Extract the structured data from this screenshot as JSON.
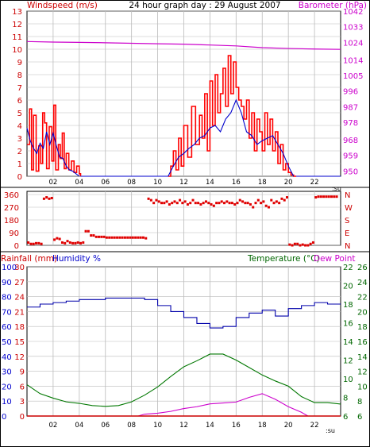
{
  "title": "24 hour graph day : 29 August 2007",
  "x_end_label": ":su",
  "colors": {
    "wind": "#e00000",
    "gust": "#ff0000",
    "avgwind": "#0000cc",
    "baro": "#cc00cc",
    "dir": "#e00000",
    "humidity": "#0000aa",
    "temperature": "#007700",
    "rain": "#cc00cc",
    "dewpoint": "#007700",
    "left_axis": "#cc0000",
    "right_axis": "#cc00cc",
    "blue_axis": "#0000cc",
    "green_axis": "#006600",
    "grid": "#bbbbbb"
  },
  "chart_data": [
    {
      "type": "line",
      "title": "24 hour graph day : 29 August 2007",
      "ylabel": "Windspeed (m/s)",
      "y2label": "Barometer (hPa)",
      "xlim": [
        0,
        24
      ],
      "ylim": [
        0,
        13
      ],
      "y2lim": [
        947,
        1042
      ],
      "x_ticks": [
        2,
        4,
        6,
        8,
        10,
        12,
        14,
        16,
        18,
        20,
        22
      ],
      "x_tick_labels": [
        "02",
        "04",
        "06",
        "08",
        "10",
        "12",
        "14",
        "16",
        "18",
        "20",
        "22"
      ],
      "y_ticks": [
        0,
        1,
        2,
        3,
        4,
        5,
        6,
        7,
        8,
        9,
        10,
        11,
        12,
        13
      ],
      "y2_ticks": [
        950,
        959,
        968,
        978,
        987,
        996,
        1005,
        1014,
        1024,
        1033,
        1042
      ],
      "grid": true,
      "series": [
        {
          "name": "gust",
          "axis": "left",
          "x": [
            0.0,
            0.2,
            0.35,
            0.5,
            0.7,
            0.9,
            1.05,
            1.2,
            1.35,
            1.5,
            1.7,
            1.9,
            2.05,
            2.2,
            2.4,
            2.55,
            2.7,
            2.85,
            3.0,
            3.2,
            3.4,
            3.6,
            3.8,
            4.0,
            4.1,
            10.8,
            11.0,
            11.2,
            11.4,
            11.6,
            11.8,
            12.0,
            12.3,
            12.6,
            12.9,
            13.2,
            13.4,
            13.6,
            13.8,
            14.0,
            14.2,
            14.4,
            14.6,
            14.8,
            15.0,
            15.2,
            15.4,
            15.6,
            15.8,
            16.0,
            16.2,
            16.4,
            16.6,
            16.8,
            17.0,
            17.2,
            17.4,
            17.6,
            17.8,
            18.0,
            18.2,
            18.4,
            18.6,
            18.8,
            19.0,
            19.2,
            19.4,
            19.6,
            19.8,
            20.0,
            20.2,
            20.4,
            20.6
          ],
          "y": [
            2.5,
            5.3,
            0.5,
            4.8,
            0.4,
            2.4,
            1.0,
            5.0,
            4.2,
            0.6,
            3.9,
            1.2,
            5.6,
            0.5,
            2.5,
            1.4,
            3.4,
            0.6,
            1.8,
            0.5,
            1.2,
            0.3,
            0.8,
            0.2,
            0.0,
            0.0,
            0.8,
            2.0,
            0.5,
            3.0,
            0.8,
            4.0,
            1.5,
            5.5,
            2.5,
            4.8,
            3.0,
            6.5,
            2.0,
            7.5,
            4.0,
            8.0,
            5.0,
            6.5,
            8.5,
            5.5,
            9.5,
            6.5,
            9.0,
            7.0,
            6.0,
            5.5,
            4.5,
            6.0,
            3.0,
            5.0,
            2.0,
            4.5,
            3.5,
            2.0,
            5.0,
            2.5,
            4.5,
            2.0,
            3.5,
            1.0,
            2.5,
            0.5,
            1.0,
            0.3,
            0.1,
            0.0,
            0.0
          ]
        },
        {
          "name": "average",
          "axis": "left",
          "x": [
            0.0,
            0.25,
            0.5,
            0.75,
            1.0,
            1.25,
            1.5,
            1.75,
            2.0,
            2.25,
            2.5,
            2.75,
            3.0,
            3.25,
            3.5,
            3.75,
            4.0,
            10.8,
            11.2,
            11.6,
            12.0,
            12.4,
            12.8,
            13.2,
            13.6,
            14.0,
            14.4,
            14.8,
            15.2,
            15.6,
            16.0,
            16.4,
            16.8,
            17.2,
            17.6,
            18.0,
            18.4,
            18.8,
            19.2,
            19.6,
            20.0,
            20.4
          ],
          "y": [
            3.8,
            2.8,
            2.2,
            1.8,
            2.6,
            2.2,
            3.5,
            2.5,
            3.4,
            2.4,
            1.5,
            1.4,
            0.8,
            0.5,
            0.4,
            0.2,
            0.0,
            0.0,
            0.8,
            1.5,
            1.8,
            2.2,
            2.5,
            3.0,
            3.2,
            3.8,
            4.0,
            3.5,
            4.5,
            5.0,
            6.0,
            5.0,
            3.5,
            3.2,
            2.5,
            2.8,
            3.0,
            3.2,
            2.5,
            1.8,
            0.8,
            0.0
          ]
        },
        {
          "name": "barometer",
          "axis": "right",
          "x": [
            0,
            2,
            4,
            6,
            8,
            10,
            12,
            14,
            16,
            18,
            20,
            22,
            24
          ],
          "y": [
            1024.5,
            1024.2,
            1024.0,
            1023.8,
            1023.5,
            1023.2,
            1023.0,
            1022.5,
            1022.0,
            1021.0,
            1020.5,
            1020.2,
            1020.0
          ]
        }
      ]
    },
    {
      "type": "scatter",
      "ylabel": "Wind direction (deg)",
      "xlim": [
        0,
        24
      ],
      "ylim": [
        0,
        360
      ],
      "y_ticks": [
        0,
        90,
        180,
        270,
        360
      ],
      "y_tick_labels": [
        "0",
        "90",
        "180",
        "270",
        "360"
      ],
      "y2_tick_labels": [
        "N",
        "E",
        "S",
        "W",
        "N"
      ],
      "grid": true,
      "x": [
        0.1,
        0.3,
        0.5,
        0.7,
        0.9,
        1.1,
        1.3,
        1.5,
        1.7,
        1.9,
        2.1,
        2.3,
        2.5,
        2.7,
        2.9,
        3.1,
        3.3,
        3.5,
        3.7,
        3.9,
        4.1,
        4.3,
        4.5,
        4.7,
        4.9,
        5.1,
        5.3,
        5.5,
        5.7,
        5.9,
        6.1,
        6.3,
        6.5,
        6.7,
        6.9,
        7.1,
        7.3,
        7.5,
        7.7,
        7.9,
        8.1,
        8.3,
        8.5,
        8.7,
        8.9,
        9.1,
        9.3,
        9.5,
        9.7,
        9.9,
        10.1,
        10.3,
        10.5,
        10.7,
        10.9,
        11.1,
        11.3,
        11.5,
        11.7,
        11.9,
        12.1,
        12.3,
        12.5,
        12.7,
        12.9,
        13.1,
        13.3,
        13.5,
        13.7,
        13.9,
        14.1,
        14.3,
        14.5,
        14.7,
        14.9,
        15.1,
        15.3,
        15.5,
        15.7,
        15.9,
        16.1,
        16.3,
        16.5,
        16.7,
        16.9,
        17.1,
        17.3,
        17.5,
        17.7,
        17.9,
        18.1,
        18.3,
        18.5,
        18.7,
        18.9,
        19.1,
        19.3,
        19.5,
        19.7,
        19.9,
        20.1,
        20.3,
        20.5,
        20.7,
        20.9,
        21.1,
        21.3,
        21.5,
        21.7,
        21.9,
        22.1,
        22.3,
        22.5,
        22.7,
        22.9,
        23.1,
        23.3,
        23.5,
        23.7
      ],
      "y": [
        20,
        10,
        10,
        15,
        15,
        10,
        330,
        340,
        330,
        335,
        40,
        50,
        45,
        20,
        15,
        30,
        20,
        15,
        15,
        20,
        15,
        20,
        100,
        100,
        70,
        70,
        60,
        60,
        60,
        60,
        55,
        55,
        55,
        55,
        55,
        55,
        55,
        55,
        55,
        55,
        55,
        55,
        55,
        55,
        55,
        50,
        330,
        320,
        300,
        320,
        310,
        300,
        300,
        310,
        290,
        300,
        310,
        300,
        320,
        300,
        310,
        290,
        300,
        320,
        300,
        300,
        290,
        300,
        310,
        300,
        290,
        280,
        300,
        300,
        310,
        300,
        310,
        300,
        300,
        290,
        300,
        320,
        310,
        300,
        300,
        290,
        270,
        300,
        320,
        300,
        310,
        280,
        270,
        320,
        300,
        310,
        300,
        330,
        320,
        340,
        5,
        0,
        10,
        10,
        0,
        5,
        0,
        0,
        10,
        20,
        340,
        345,
        345,
        345,
        345,
        345,
        345,
        345,
        345
      ]
    },
    {
      "type": "line",
      "ylabel": "Rainfall (mm)",
      "ylabel2": "Humidity %",
      "y2label": "Temperature (°C)",
      "y3label": "Dew Point",
      "xlim": [
        0,
        24
      ],
      "humidity_lim": [
        0,
        100
      ],
      "rain_lim": [
        0,
        30
      ],
      "temp_lim": [
        6,
        26
      ],
      "dew_lim": [
        6,
        22
      ],
      "humidity_ticks": [
        0,
        10,
        20,
        30,
        40,
        50,
        60,
        70,
        80,
        90,
        100
      ],
      "rain_ticks": [
        0,
        3,
        6,
        9,
        12,
        15,
        18,
        21,
        24,
        27,
        30
      ],
      "temp_ticks": [
        6,
        8,
        10,
        12,
        14,
        16,
        18,
        20,
        22,
        24,
        26
      ],
      "dew_ticks": [
        6,
        8,
        10,
        12,
        14,
        16,
        18,
        20,
        22
      ],
      "grid": true,
      "series": [
        {
          "name": "Humidity %",
          "axis": "humidity",
          "x": [
            0,
            1,
            2,
            3,
            4,
            5,
            6,
            7,
            8,
            9,
            10,
            11,
            12,
            13,
            14,
            15,
            16,
            17,
            18,
            19,
            20,
            21,
            22,
            23,
            24
          ],
          "y": [
            73,
            75,
            76,
            77,
            78,
            78,
            79,
            79,
            79,
            78,
            74,
            70,
            66,
            62,
            59,
            60,
            66,
            69,
            71,
            67,
            72,
            74,
            76,
            75,
            75
          ]
        },
        {
          "name": "Temperature (°C)",
          "axis": "temp",
          "x": [
            0,
            1,
            2,
            3,
            4,
            5,
            6,
            7,
            8,
            9,
            10,
            11,
            12,
            13,
            14,
            15,
            16,
            17,
            18,
            19,
            20,
            21,
            22,
            23,
            24
          ],
          "y": [
            10.2,
            9.0,
            8.4,
            7.9,
            7.7,
            7.4,
            7.3,
            7.4,
            7.9,
            8.8,
            9.9,
            11.3,
            12.6,
            13.4,
            14.3,
            14.3,
            13.5,
            12.5,
            11.5,
            10.7,
            10.0,
            8.6,
            7.8,
            7.8,
            7.6
          ]
        },
        {
          "name": "Dew Point",
          "axis": "dew",
          "x": [
            8.5,
            9,
            10,
            11,
            12,
            13,
            14,
            15,
            16,
            17,
            18,
            19,
            20,
            21,
            21.5
          ],
          "y": [
            6.0,
            6.2,
            6.3,
            6.5,
            6.8,
            7.0,
            7.3,
            7.4,
            7.5,
            8.0,
            8.4,
            7.8,
            7.0,
            6.4,
            6.0
          ]
        },
        {
          "name": "Rainfall (mm)",
          "axis": "rain",
          "x": [
            0,
            24
          ],
          "y": [
            0,
            0
          ]
        }
      ]
    }
  ]
}
